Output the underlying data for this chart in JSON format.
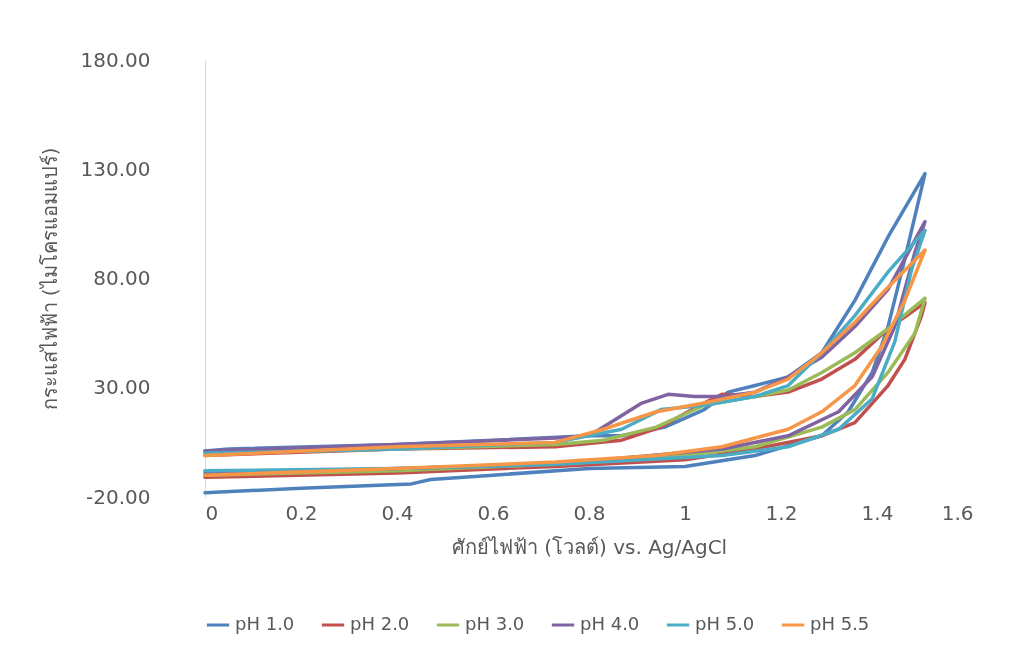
{
  "chart_data": {
    "type": "line",
    "xlabel": "ศักย์ไฟฟ้า (โวลต์) vs. Ag/AgCl",
    "ylabel": "กระแสไฟฟ้า (ไมโครแอมแปร์)",
    "xlim": [
      0,
      1.6
    ],
    "xticks": [
      0,
      0.2,
      0.4,
      0.6,
      0.8,
      1,
      1.2,
      1.4,
      1.6
    ],
    "ylim": [
      -20,
      180
    ],
    "yticks": [
      {
        "value": -20,
        "label": "-20.00"
      },
      {
        "value": 30,
        "label": "30.00"
      },
      {
        "value": 80,
        "label": "80.00"
      },
      {
        "value": 130,
        "label": "130.00"
      },
      {
        "value": 180,
        "label": "180.00"
      }
    ],
    "grid": false,
    "legend": "bottom",
    "series": [
      {
        "name": "pH 1.0",
        "color": "#4f81bd",
        "x": [
          0,
          0.2,
          0.43,
          0.47,
          0.6,
          0.8,
          1.0,
          1.146,
          1.285,
          1.34,
          1.39,
          1.423,
          1.458,
          1.5,
          1.423,
          1.354,
          1.285,
          1.215,
          1.146,
          1.09,
          1.04,
          0.958,
          0.868,
          0.8,
          0.4,
          0.05,
          0
        ],
        "values": [
          -18,
          -16,
          -14,
          -12,
          -10,
          -7,
          -6,
          -1,
          8,
          19,
          37,
          58,
          89,
          128,
          99,
          70,
          46,
          35,
          31,
          28,
          20,
          12,
          8,
          8,
          4,
          2,
          1
        ]
      },
      {
        "name": "pH 2.0",
        "color": "#c0504d",
        "x": [
          0,
          0.4,
          0.73,
          1.0,
          1.146,
          1.285,
          1.354,
          1.423,
          1.458,
          1.493,
          1.5,
          1.423,
          1.354,
          1.285,
          1.215,
          1.146,
          1.077,
          1.03,
          0.95,
          0.868,
          0.73,
          0.4,
          0
        ],
        "values": [
          -11,
          -9,
          -6,
          -3,
          2,
          8,
          14,
          31,
          43,
          63,
          69,
          57,
          43,
          34,
          28,
          26,
          27,
          22,
          12,
          6,
          3,
          2,
          -1
        ]
      },
      {
        "name": "pH 3.0",
        "color": "#9bbb59",
        "x": [
          0,
          0.4,
          0.73,
          1.0,
          1.146,
          1.285,
          1.354,
          1.423,
          1.479,
          1.5,
          1.423,
          1.354,
          1.285,
          1.215,
          1.146,
          1.04,
          0.94,
          0.83,
          0.73,
          0.4,
          0
        ],
        "values": [
          -10,
          -8,
          -5,
          -1,
          3,
          12,
          20,
          37,
          55,
          71,
          57,
          46,
          37,
          29,
          26,
          22,
          12,
          6,
          4,
          2,
          0
        ]
      },
      {
        "name": "pH 4.0",
        "color": "#8064a2",
        "x": [
          0,
          0.4,
          0.73,
          1.077,
          1.215,
          1.32,
          1.39,
          1.437,
          1.479,
          1.5,
          1.423,
          1.354,
          1.285,
          1.215,
          1.146,
          1.077,
          1.02,
          0.965,
          0.91,
          0.83,
          0.8,
          0.73,
          0.4,
          0
        ],
        "values": [
          -9,
          -7,
          -5,
          2,
          8,
          19,
          35,
          58,
          92,
          106,
          75,
          58,
          44,
          35,
          28,
          26,
          26,
          27,
          23,
          12,
          8,
          7,
          4,
          1
        ]
      },
      {
        "name": "pH 5.0",
        "color": "#4bacc6",
        "x": [
          0,
          0.4,
          0.73,
          1.077,
          1.215,
          1.32,
          1.39,
          1.437,
          1.472,
          1.5,
          1.423,
          1.354,
          1.285,
          1.215,
          1.146,
          1.04,
          0.95,
          0.868,
          0.73,
          0.4,
          0
        ],
        "values": [
          -8,
          -7,
          -5,
          -1,
          3,
          11,
          25,
          51,
          84,
          102,
          83,
          63,
          46,
          31,
          26,
          22,
          20,
          11,
          5,
          2,
          0
        ]
      },
      {
        "name": "pH 5.5",
        "color": "#f79646",
        "x": [
          0,
          0.4,
          0.73,
          0.94,
          1.077,
          1.215,
          1.285,
          1.354,
          1.41,
          1.458,
          1.5,
          1.423,
          1.354,
          1.285,
          1.215,
          1.146,
          1.04,
          0.94,
          0.83,
          0.73,
          0.4,
          0
        ],
        "values": [
          -10,
          -7,
          -4,
          -1,
          3,
          11,
          19,
          31,
          49,
          70,
          93,
          76,
          60,
          46,
          34,
          28,
          23,
          19,
          11,
          5,
          3,
          -1
        ]
      }
    ]
  }
}
